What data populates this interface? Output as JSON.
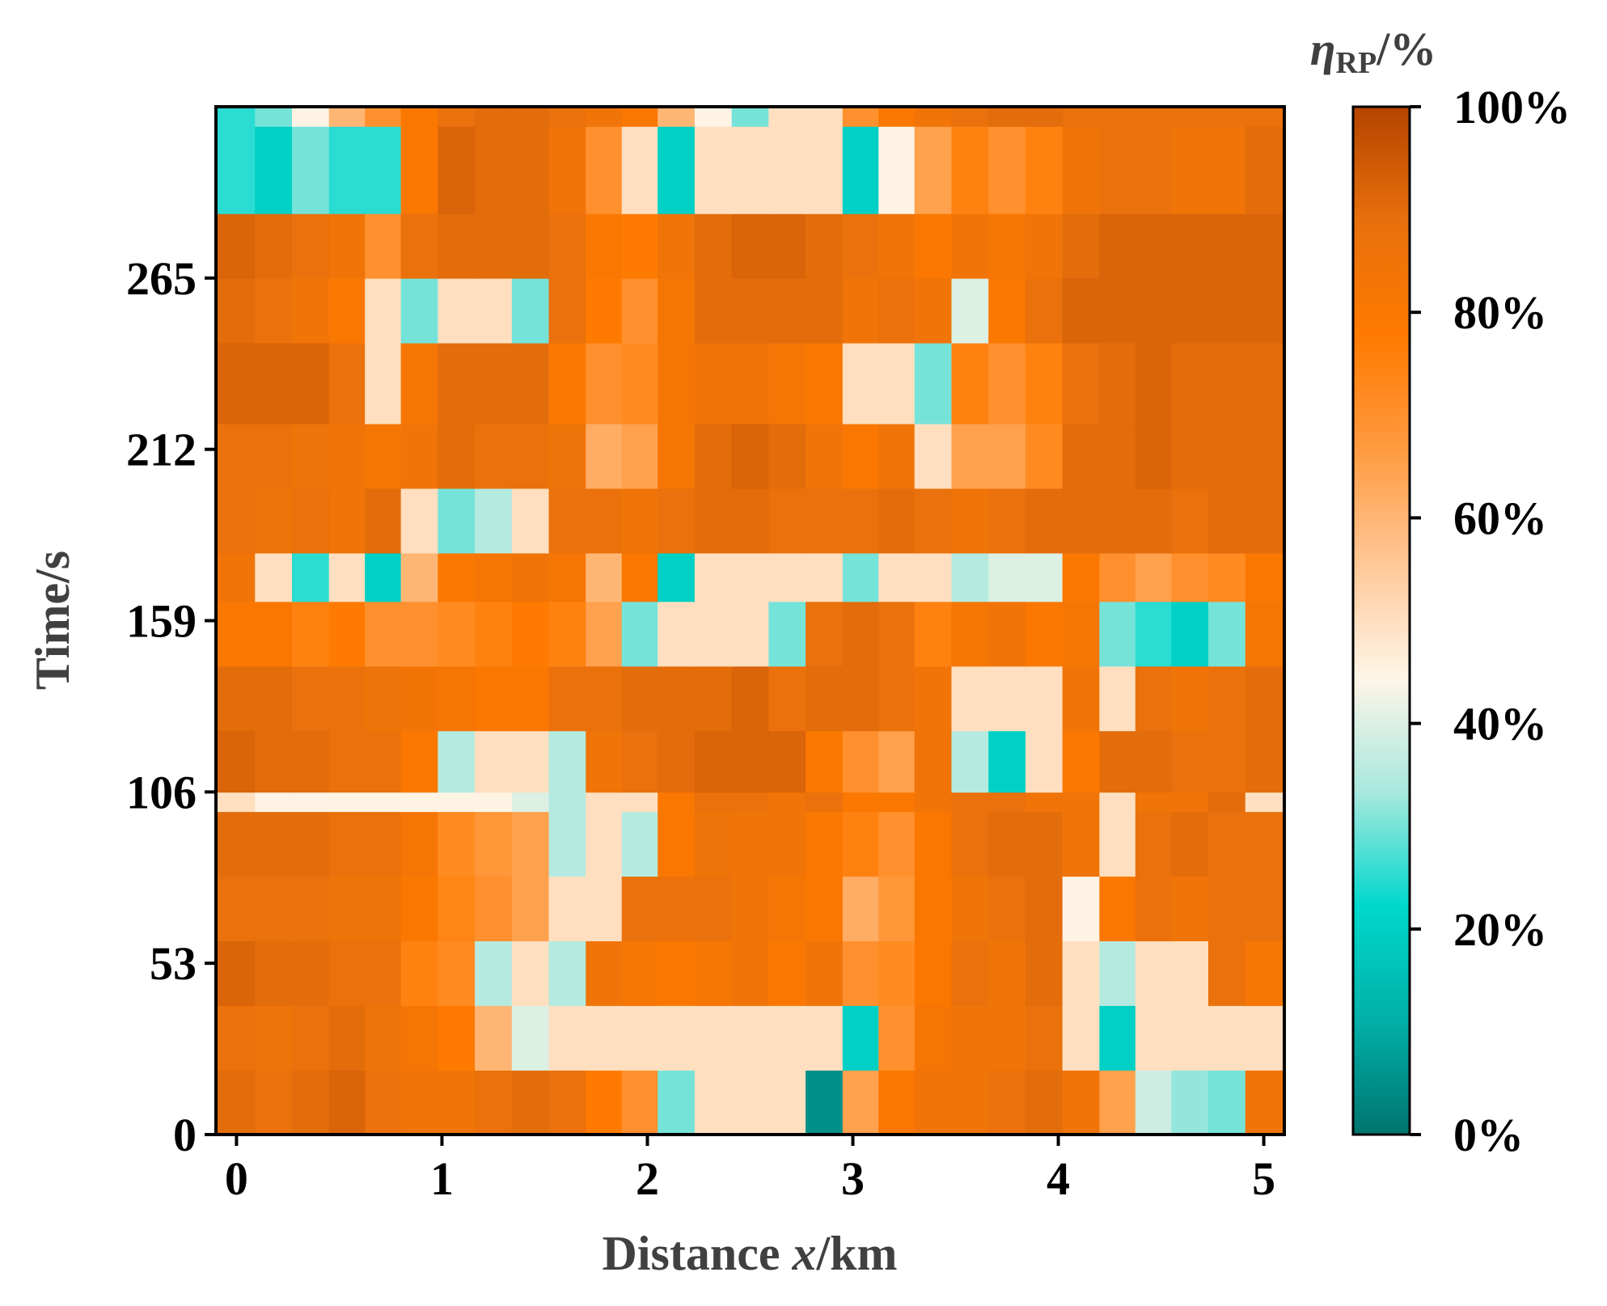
{
  "chart_data": {
    "type": "heatmap",
    "title": "",
    "xlabel": {
      "prefix": "Distance ",
      "var": "x",
      "suffix": "/km"
    },
    "ylabel": "Time/s",
    "x_range": [
      -0.1,
      5.1
    ],
    "y_range": [
      0,
      318
    ],
    "x_ticks": [
      "0",
      "1",
      "2",
      "3",
      "4",
      "5"
    ],
    "x_tick_values": [
      0,
      1,
      2,
      3,
      4,
      5
    ],
    "y_ticks": [
      "0",
      "53",
      "106",
      "159",
      "212",
      "265"
    ],
    "y_tick_values": [
      0,
      53,
      106,
      159,
      212,
      265
    ],
    "colorbar": {
      "label": {
        "var": "η",
        "sub": "RP",
        "suffix": "/%"
      },
      "range": [
        0,
        100
      ],
      "ticks": [
        "0%",
        "20%",
        "40%",
        "60%",
        "80%",
        "100%"
      ],
      "tick_values": [
        0,
        20,
        40,
        60,
        80,
        100
      ],
      "colors": [
        "#00756E",
        "#00B0A8",
        "#00D8CC",
        "#A8E8DE",
        "#FFF5E8",
        "#FFC896",
        "#FF9A40",
        "#FF7A00",
        "#E8700C",
        "#B44400"
      ]
    },
    "columns_x": [
      0.0,
      0.18,
      0.36,
      0.54,
      0.71,
      0.89,
      1.07,
      1.25,
      1.43,
      1.61,
      1.79,
      1.96,
      2.14,
      2.32,
      2.5,
      2.68,
      2.86,
      3.04,
      3.21,
      3.39,
      3.57,
      3.75,
      3.93,
      4.11,
      4.29,
      4.46,
      4.64,
      4.82,
      5.0
    ],
    "row_bands_time": [
      0,
      20,
      40,
      60,
      80,
      100,
      106,
      125,
      145,
      165,
      180,
      200,
      220,
      245,
      265,
      285,
      312,
      318
    ],
    "grid": [
      [
        90,
        88,
        90,
        92,
        88,
        85,
        85,
        88,
        90,
        88,
        78,
        70,
        30,
        50,
        50,
        50,
        5,
        65,
        80,
        85,
        85,
        88,
        90,
        85,
        65,
        38,
        32,
        30,
        85
      ],
      [
        88,
        86,
        88,
        90,
        86,
        82,
        78,
        60,
        40,
        50,
        50,
        50,
        50,
        50,
        50,
        50,
        50,
        20,
        70,
        82,
        85,
        85,
        88,
        50,
        20,
        50,
        50,
        50,
        50
      ],
      [
        92,
        90,
        90,
        88,
        88,
        75,
        72,
        35,
        50,
        35,
        85,
        82,
        80,
        82,
        85,
        80,
        85,
        70,
        72,
        80,
        88,
        85,
        90,
        50,
        35,
        50,
        50,
        88,
        82
      ],
      [
        88,
        88,
        88,
        86,
        86,
        80,
        74,
        70,
        65,
        50,
        50,
        88,
        88,
        88,
        85,
        82,
        80,
        62,
        68,
        80,
        85,
        88,
        90,
        45,
        80,
        88,
        85,
        88,
        88
      ],
      [
        90,
        90,
        90,
        88,
        88,
        82,
        72,
        68,
        65,
        35,
        50,
        35,
        80,
        86,
        85,
        85,
        80,
        75,
        70,
        80,
        88,
        90,
        90,
        85,
        50,
        88,
        90,
        88,
        88
      ],
      [
        50,
        45,
        45,
        45,
        45,
        45,
        45,
        45,
        40,
        35,
        50,
        50,
        80,
        88,
        88,
        85,
        88,
        80,
        80,
        85,
        88,
        88,
        85,
        85,
        50,
        85,
        85,
        90,
        50
      ],
      [
        92,
        90,
        90,
        88,
        88,
        80,
        35,
        50,
        50,
        35,
        85,
        88,
        90,
        92,
        92,
        92,
        80,
        70,
        65,
        85,
        35,
        20,
        50,
        80,
        90,
        90,
        88,
        88,
        90
      ],
      [
        90,
        90,
        88,
        88,
        86,
        84,
        82,
        80,
        80,
        88,
        88,
        90,
        90,
        90,
        92,
        88,
        90,
        90,
        88,
        85,
        50,
        50,
        50,
        85,
        50,
        88,
        85,
        88,
        90
      ],
      [
        80,
        80,
        75,
        78,
        70,
        70,
        72,
        75,
        78,
        75,
        65,
        30,
        50,
        50,
        50,
        30,
        88,
        90,
        88,
        75,
        82,
        85,
        80,
        82,
        30,
        25,
        20,
        30,
        82
      ],
      [
        85,
        50,
        25,
        50,
        20,
        60,
        80,
        82,
        85,
        82,
        60,
        80,
        20,
        50,
        50,
        50,
        50,
        30,
        50,
        50,
        35,
        40,
        40,
        80,
        70,
        65,
        70,
        72,
        80
      ],
      [
        88,
        86,
        88,
        85,
        90,
        50,
        30,
        35,
        50,
        88,
        88,
        85,
        88,
        90,
        90,
        88,
        88,
        88,
        90,
        88,
        85,
        88,
        90,
        90,
        90,
        90,
        88,
        90,
        90
      ],
      [
        88,
        88,
        86,
        85,
        82,
        85,
        90,
        88,
        88,
        86,
        62,
        65,
        82,
        90,
        92,
        90,
        85,
        80,
        85,
        50,
        65,
        65,
        72,
        90,
        90,
        92,
        90,
        90,
        90
      ],
      [
        92,
        92,
        92,
        88,
        50,
        82,
        90,
        90,
        90,
        80,
        70,
        72,
        82,
        85,
        85,
        82,
        80,
        50,
        50,
        30,
        75,
        70,
        75,
        88,
        90,
        92,
        90,
        90,
        90
      ],
      [
        90,
        88,
        85,
        80,
        50,
        30,
        50,
        50,
        30,
        88,
        78,
        70,
        82,
        90,
        90,
        90,
        90,
        85,
        88,
        85,
        40,
        80,
        88,
        92,
        92,
        92,
        92,
        92,
        92
      ],
      [
        92,
        90,
        88,
        85,
        70,
        88,
        90,
        90,
        90,
        88,
        80,
        78,
        85,
        90,
        92,
        92,
        90,
        88,
        85,
        80,
        85,
        82,
        85,
        90,
        92,
        92,
        92,
        92,
        92
      ],
      [
        25,
        20,
        30,
        25,
        25,
        80,
        92,
        90,
        90,
        85,
        70,
        50,
        20,
        50,
        50,
        50,
        50,
        20,
        45,
        65,
        75,
        70,
        75,
        85,
        88,
        88,
        85,
        85,
        90
      ],
      [
        25,
        30,
        45,
        60,
        70,
        80,
        88,
        90,
        90,
        88,
        85,
        80,
        60,
        45,
        30,
        50,
        50,
        70,
        80,
        85,
        88,
        90,
        90,
        88,
        88,
        88,
        88,
        88,
        88
      ]
    ]
  }
}
